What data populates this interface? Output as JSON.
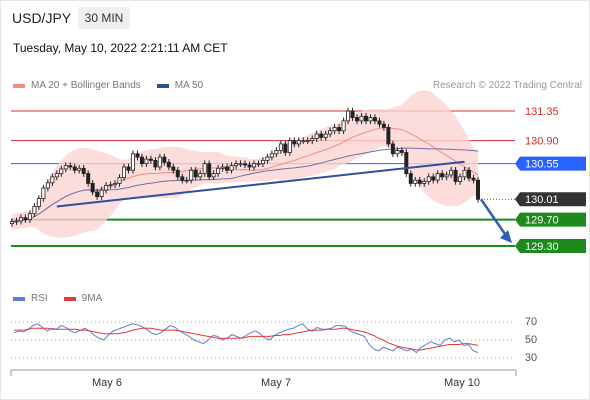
{
  "header": {
    "symbol": "USD/JPY",
    "timeframe": "30 MIN",
    "datetime": "Tuesday, May 10, 2022 2:21:11 AM CET"
  },
  "legend_main": [
    {
      "label": "MA 20 + Bollinger Bands",
      "color": "#f28b82"
    },
    {
      "label": "MA 50",
      "color": "#2f4f8f"
    }
  ],
  "legend_rsi": [
    {
      "label": "RSI",
      "color": "#5b7fd6"
    },
    {
      "label": "9MA",
      "color": "#e53935"
    }
  ],
  "copyright": "Research © 2022 Trading Central",
  "chart_data": [
    {
      "type": "candlestick",
      "title": "",
      "x_labels": [
        "May 6",
        "May 7",
        "May 10"
      ],
      "ylim": [
        129.0,
        131.6
      ],
      "levels": [
        {
          "label": "131.35",
          "value": 131.35,
          "kind": "resistance",
          "color": "#d32f2f"
        },
        {
          "label": "130.90",
          "value": 130.9,
          "kind": "resistance",
          "color": "#d32f2f"
        },
        {
          "label": "130.55",
          "value": 130.55,
          "kind": "pivot",
          "color": "#2962ff"
        },
        {
          "label": "130.01",
          "value": 130.01,
          "kind": "last",
          "color": "#333333"
        },
        {
          "label": "129.70",
          "value": 129.7,
          "kind": "support",
          "color": "#1e8a1e"
        },
        {
          "label": "129.30",
          "value": 129.3,
          "kind": "support",
          "color": "#1e8a1e"
        }
      ],
      "close_series": [
        129.67,
        129.68,
        129.73,
        129.7,
        129.79,
        129.9,
        130.02,
        130.18,
        130.26,
        130.35,
        130.4,
        130.47,
        130.52,
        130.5,
        130.45,
        130.48,
        130.4,
        130.25,
        130.12,
        130.05,
        130.15,
        130.22,
        130.23,
        130.25,
        130.34,
        130.5,
        130.45,
        130.7,
        130.65,
        130.55,
        130.62,
        130.6,
        130.5,
        130.65,
        130.57,
        130.5,
        130.45,
        130.35,
        130.3,
        130.3,
        130.45,
        130.35,
        130.4,
        130.55,
        130.35,
        130.4,
        130.48,
        130.5,
        130.45,
        130.52,
        130.55,
        130.55,
        130.53,
        130.5,
        130.55,
        130.55,
        130.6,
        130.65,
        130.7,
        130.75,
        130.85,
        130.72,
        130.9,
        130.85,
        130.9,
        130.9,
        130.9,
        130.93,
        131.0,
        130.95,
        131.0,
        131.05,
        131.1,
        131.05,
        131.2,
        131.35,
        131.25,
        131.2,
        131.27,
        131.2,
        131.25,
        131.2,
        131.15,
        131.1,
        130.85,
        130.7,
        130.75,
        130.72,
        130.4,
        130.25,
        130.3,
        130.25,
        130.28,
        130.35,
        130.3,
        130.4,
        130.35,
        130.38,
        130.45,
        130.28,
        130.35,
        130.45,
        130.33,
        130.3,
        130.01
      ],
      "trendline": {
        "from": 129.9,
        "to": 130.58
      },
      "forecast": {
        "from": 130.01,
        "to": 129.3
      }
    },
    {
      "type": "line",
      "title": "RSI",
      "yticks": [
        70,
        50,
        30
      ],
      "ylim": [
        25,
        75
      ],
      "series": [
        {
          "name": "RSI",
          "values": [
            58,
            60,
            59,
            62,
            66,
            68,
            64,
            60,
            63,
            62,
            66,
            64,
            60,
            58,
            61,
            63,
            60,
            55,
            52,
            50,
            56,
            60,
            62,
            64,
            66,
            68,
            67,
            65,
            62,
            58,
            56,
            58,
            62,
            66,
            64,
            60,
            57,
            54,
            50,
            48,
            46,
            50,
            55,
            54,
            50,
            52,
            56,
            54,
            52,
            55,
            58,
            60,
            57,
            52,
            50,
            55,
            58,
            60,
            62,
            63,
            66,
            68,
            62,
            60,
            64,
            62,
            62,
            63,
            66,
            66,
            65,
            60,
            58,
            56,
            54,
            45,
            40,
            38,
            42,
            40,
            38,
            42,
            40,
            38,
            40,
            36,
            42,
            45,
            48,
            46,
            44,
            50,
            52,
            48,
            50,
            44,
            45,
            38,
            36
          ]
        },
        {
          "name": "9MA",
          "values": [
            61,
            61,
            61,
            62,
            63,
            63,
            63,
            63,
            62,
            62,
            62,
            62,
            62,
            62,
            61,
            61,
            60,
            59,
            58,
            57,
            57,
            57,
            57,
            58,
            59,
            61,
            62,
            63,
            63,
            63,
            62,
            61,
            61,
            61,
            61,
            60,
            59,
            58,
            57,
            56,
            55,
            54,
            53,
            52,
            52,
            52,
            52,
            52,
            52,
            53,
            54,
            54,
            54,
            54,
            54,
            55,
            55,
            56,
            56,
            57,
            58,
            59,
            60,
            61,
            61,
            61,
            62,
            62,
            62,
            63,
            63,
            62,
            61,
            60,
            59,
            57,
            55,
            52,
            50,
            47,
            45,
            43,
            42,
            41,
            40,
            39,
            39,
            40,
            41,
            42,
            43,
            44,
            45,
            45,
            45,
            46,
            46,
            45,
            44
          ]
        }
      ]
    }
  ]
}
